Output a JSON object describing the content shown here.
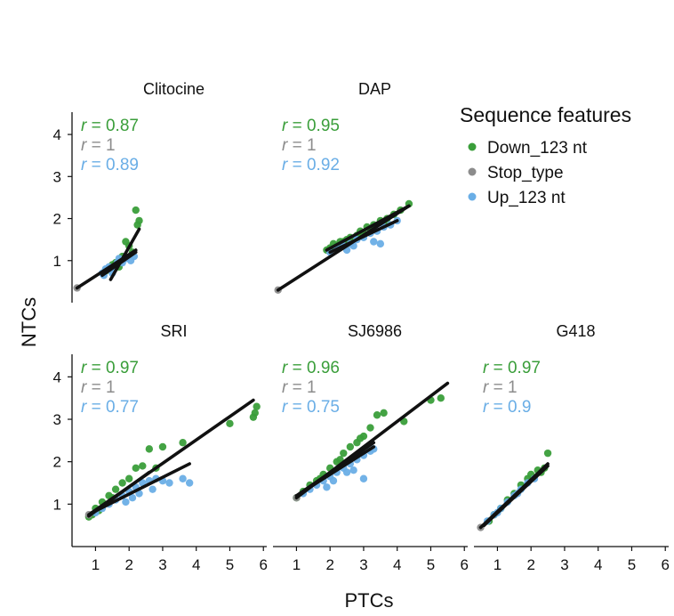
{
  "colors": {
    "down": "#3a9e3a",
    "stop": "#8c8c8c",
    "up": "#6aaee6",
    "fit": "#111111",
    "axis": "#111111"
  },
  "figure": {
    "ylabel": "NTCs",
    "xlabel": "PTCs",
    "legend_title": "Sequence features"
  },
  "chart_data": {
    "type": "scatter",
    "grid": false,
    "legend_placement": "top-right",
    "xlim": [
      0.3,
      6.1
    ],
    "ylim": [
      0.0,
      4.7
    ],
    "xticks": [
      "1",
      "2",
      "3",
      "4",
      "5",
      "6"
    ],
    "yticks": [
      "1",
      "2",
      "3",
      "4"
    ],
    "legend": [
      {
        "label": "Down_123 nt",
        "color": "#3a9e3a"
      },
      {
        "label": "Stop_type",
        "color": "#8c8c8c"
      },
      {
        "label": "Up_123 nt",
        "color": "#6aaee6"
      }
    ],
    "panels": [
      {
        "title": "Clitocine",
        "stats": [
          {
            "text": "r = 0.87",
            "series": "down"
          },
          {
            "text": "r = 1",
            "series": "stop"
          },
          {
            "text": "r = 0.89",
            "series": "up"
          }
        ],
        "points": {
          "down": [
            [
              2.2,
              2.2
            ],
            [
              2.3,
              1.95
            ],
            [
              2.25,
              1.85
            ],
            [
              1.9,
              1.45
            ],
            [
              2.0,
              1.35
            ],
            [
              2.1,
              1.2
            ],
            [
              1.8,
              1.1
            ],
            [
              1.6,
              0.95
            ],
            [
              1.7,
              0.85
            ],
            [
              1.4,
              0.8
            ],
            [
              1.5,
              0.9
            ],
            [
              1.3,
              0.75
            ]
          ],
          "stop": [
            [
              0.45,
              0.35
            ]
          ],
          "up": [
            [
              1.2,
              0.7
            ],
            [
              1.3,
              0.8
            ],
            [
              1.4,
              0.85
            ],
            [
              1.55,
              0.8
            ],
            [
              1.65,
              0.95
            ],
            [
              1.8,
              0.95
            ],
            [
              1.9,
              1.05
            ],
            [
              2.05,
              1.0
            ],
            [
              2.15,
              1.1
            ],
            [
              1.25,
              0.65
            ],
            [
              1.5,
              0.7
            ],
            [
              1.7,
              1.05
            ]
          ]
        },
        "fits": [
          {
            "series": "stop",
            "x": [
              0.45,
              2.2
            ],
            "y": [
              0.35,
              1.25
            ]
          },
          {
            "series": "down",
            "x": [
              1.45,
              2.3
            ],
            "y": [
              0.55,
              1.75
            ]
          },
          {
            "series": "up",
            "x": [
              1.2,
              2.2
            ],
            "y": [
              0.65,
              1.2
            ]
          }
        ]
      },
      {
        "title": "DAP",
        "stats": [
          {
            "text": "r = 0.95",
            "series": "down"
          },
          {
            "text": "r = 1",
            "series": "stop"
          },
          {
            "text": "r = 0.92",
            "series": "up"
          }
        ],
        "points": {
          "down": [
            [
              4.35,
              2.35
            ],
            [
              4.1,
              2.2
            ],
            [
              3.9,
              2.1
            ],
            [
              3.7,
              2.0
            ],
            [
              3.5,
              1.95
            ],
            [
              3.3,
              1.85
            ],
            [
              3.1,
              1.8
            ],
            [
              2.9,
              1.7
            ],
            [
              2.8,
              1.6
            ],
            [
              2.6,
              1.55
            ],
            [
              2.4,
              1.45
            ],
            [
              2.2,
              1.35
            ],
            [
              2.0,
              1.3
            ],
            [
              1.9,
              1.25
            ],
            [
              2.1,
              1.4
            ],
            [
              2.5,
              1.5
            ],
            [
              3.0,
              1.65
            ],
            [
              3.2,
              1.75
            ],
            [
              3.6,
              1.9
            ],
            [
              2.3,
              1.45
            ]
          ],
          "stop": [
            [
              0.45,
              0.3
            ]
          ],
          "up": [
            [
              2.0,
              1.2
            ],
            [
              2.2,
              1.3
            ],
            [
              2.4,
              1.35
            ],
            [
              2.6,
              1.4
            ],
            [
              2.8,
              1.5
            ],
            [
              3.0,
              1.55
            ],
            [
              3.2,
              1.65
            ],
            [
              3.4,
              1.7
            ],
            [
              3.6,
              1.8
            ],
            [
              3.8,
              1.85
            ],
            [
              4.0,
              1.95
            ],
            [
              3.3,
              1.45
            ],
            [
              3.5,
              1.4
            ],
            [
              2.5,
              1.25
            ],
            [
              2.7,
              1.35
            ]
          ]
        },
        "fits": [
          {
            "series": "stop",
            "x": [
              0.45,
              4.35
            ],
            "y": [
              0.3,
              2.3
            ]
          },
          {
            "series": "down",
            "x": [
              1.9,
              4.35
            ],
            "y": [
              1.25,
              2.3
            ]
          },
          {
            "series": "up",
            "x": [
              2.0,
              4.0
            ],
            "y": [
              1.2,
              1.95
            ]
          }
        ]
      },
      {
        "title": "SRI",
        "stats": [
          {
            "text": "r = 0.97",
            "series": "down"
          },
          {
            "text": "r = 1",
            "series": "stop"
          },
          {
            "text": "r = 0.77",
            "series": "up"
          }
        ],
        "points": {
          "down": [
            [
              5.8,
              3.3
            ],
            [
              5.75,
              3.15
            ],
            [
              5.7,
              3.05
            ],
            [
              5.0,
              2.9
            ],
            [
              3.6,
              2.45
            ],
            [
              3.0,
              2.35
            ],
            [
              2.6,
              2.3
            ],
            [
              2.4,
              1.9
            ],
            [
              2.2,
              1.85
            ],
            [
              2.8,
              1.85
            ],
            [
              2.0,
              1.6
            ],
            [
              1.8,
              1.5
            ],
            [
              1.6,
              1.35
            ],
            [
              1.4,
              1.2
            ],
            [
              1.2,
              1.05
            ],
            [
              1.0,
              0.9
            ],
            [
              0.9,
              0.75
            ],
            [
              0.8,
              0.7
            ],
            [
              1.1,
              0.85
            ],
            [
              1.5,
              1.15
            ]
          ],
          "stop": [
            [
              0.8,
              0.75
            ]
          ],
          "up": [
            [
              1.0,
              0.8
            ],
            [
              1.2,
              0.9
            ],
            [
              1.4,
              1.0
            ],
            [
              1.6,
              1.1
            ],
            [
              1.8,
              1.2
            ],
            [
              2.0,
              1.3
            ],
            [
              2.2,
              1.4
            ],
            [
              2.4,
              1.5
            ],
            [
              2.6,
              1.55
            ],
            [
              2.8,
              1.6
            ],
            [
              3.0,
              1.55
            ],
            [
              3.2,
              1.5
            ],
            [
              3.6,
              1.6
            ],
            [
              3.8,
              1.5
            ],
            [
              2.3,
              1.25
            ],
            [
              2.7,
              1.35
            ],
            [
              1.9,
              1.05
            ],
            [
              2.1,
              1.15
            ]
          ]
        },
        "fits": [
          {
            "series": "stop",
            "x": [
              0.8,
              5.7
            ],
            "y": [
              0.75,
              3.45
            ]
          },
          {
            "series": "down",
            "x": [
              0.8,
              2.6
            ],
            "y": [
              0.72,
              1.75
            ]
          },
          {
            "series": "up",
            "x": [
              0.9,
              3.8
            ],
            "y": [
              0.8,
              1.95
            ]
          }
        ]
      },
      {
        "title": "SJ6986",
        "stats": [
          {
            "text": "r = 0.96",
            "series": "down"
          },
          {
            "text": "r = 1",
            "series": "stop"
          },
          {
            "text": "r = 0.75",
            "series": "up"
          }
        ],
        "points": {
          "down": [
            [
              5.3,
              3.5
            ],
            [
              5.0,
              3.45
            ],
            [
              4.2,
              2.95
            ],
            [
              3.6,
              3.15
            ],
            [
              3.4,
              3.1
            ],
            [
              3.2,
              2.8
            ],
            [
              3.0,
              2.6
            ],
            [
              2.8,
              2.45
            ],
            [
              2.6,
              2.35
            ],
            [
              2.4,
              2.2
            ],
            [
              2.2,
              2.0
            ],
            [
              2.0,
              1.85
            ],
            [
              1.8,
              1.7
            ],
            [
              1.6,
              1.55
            ],
            [
              1.4,
              1.45
            ],
            [
              1.2,
              1.3
            ],
            [
              1.0,
              1.15
            ],
            [
              2.9,
              2.55
            ],
            [
              2.3,
              2.05
            ],
            [
              1.7,
              1.6
            ]
          ],
          "stop": [
            [
              1.0,
              1.15
            ]
          ],
          "up": [
            [
              1.2,
              1.25
            ],
            [
              1.4,
              1.35
            ],
            [
              1.6,
              1.45
            ],
            [
              1.8,
              1.55
            ],
            [
              2.0,
              1.65
            ],
            [
              2.2,
              1.75
            ],
            [
              2.4,
              1.85
            ],
            [
              2.6,
              1.95
            ],
            [
              2.8,
              2.05
            ],
            [
              3.0,
              2.15
            ],
            [
              3.2,
              2.25
            ],
            [
              3.3,
              2.3
            ],
            [
              2.5,
              1.75
            ],
            [
              2.7,
              1.8
            ],
            [
              3.0,
              1.6
            ],
            [
              2.1,
              1.55
            ],
            [
              1.9,
              1.4
            ]
          ]
        },
        "fits": [
          {
            "series": "stop",
            "x": [
              1.0,
              5.5
            ],
            "y": [
              1.15,
              3.85
            ]
          },
          {
            "series": "down",
            "x": [
              1.0,
              3.3
            ],
            "y": [
              1.2,
              2.45
            ]
          },
          {
            "series": "up",
            "x": [
              1.1,
              3.3
            ],
            "y": [
              1.25,
              2.35
            ]
          }
        ]
      },
      {
        "title": "G418",
        "stats": [
          {
            "text": "r = 0.97",
            "series": "down"
          },
          {
            "text": "r = 1",
            "series": "stop"
          },
          {
            "text": "r = 0.9",
            "series": "up"
          }
        ],
        "points": {
          "down": [
            [
              2.5,
              2.2
            ],
            [
              2.4,
              1.85
            ],
            [
              2.2,
              1.8
            ],
            [
              2.0,
              1.7
            ],
            [
              1.9,
              1.6
            ],
            [
              1.7,
              1.45
            ],
            [
              1.5,
              1.25
            ],
            [
              1.3,
              1.1
            ],
            [
              1.1,
              0.9
            ],
            [
              0.9,
              0.75
            ],
            [
              0.75,
              0.6
            ],
            [
              2.3,
              1.75
            ]
          ],
          "stop": [
            [
              0.5,
              0.45
            ]
          ],
          "up": [
            [
              0.7,
              0.6
            ],
            [
              0.9,
              0.75
            ],
            [
              1.1,
              0.9
            ],
            [
              1.3,
              1.05
            ],
            [
              1.5,
              1.2
            ],
            [
              1.7,
              1.35
            ],
            [
              1.9,
              1.5
            ],
            [
              2.1,
              1.6
            ],
            [
              1.0,
              0.8
            ],
            [
              1.6,
              1.25
            ]
          ]
        },
        "fits": [
          {
            "series": "stop",
            "x": [
              0.5,
              2.5
            ],
            "y": [
              0.45,
              1.95
            ]
          },
          {
            "series": "down",
            "x": [
              0.6,
              2.5
            ],
            "y": [
              0.5,
              1.9
            ]
          },
          {
            "series": "up",
            "x": [
              0.6,
              2.1
            ],
            "y": [
              0.5,
              1.65
            ]
          }
        ]
      }
    ]
  }
}
